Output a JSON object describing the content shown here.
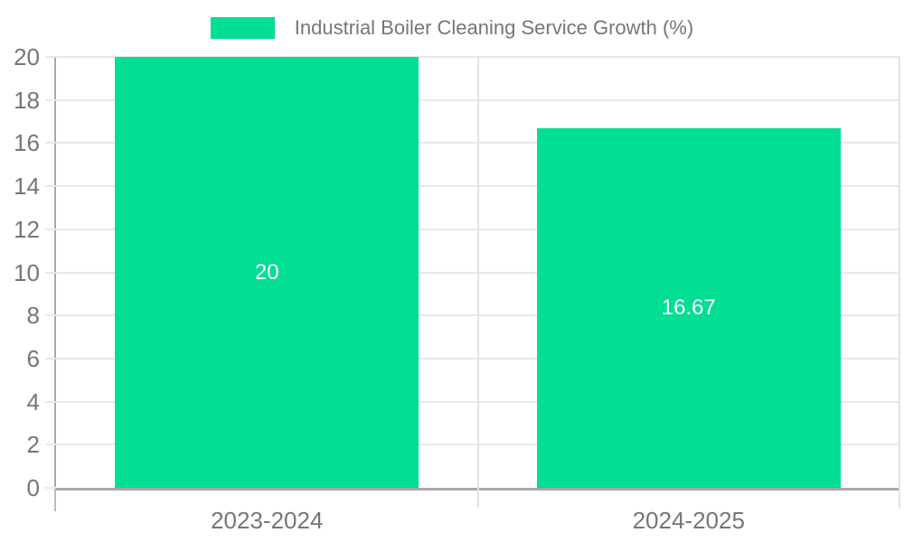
{
  "chart_data": {
    "type": "bar",
    "title": "Industrial Boiler Cleaning Service Growth (%)",
    "categories": [
      "2023-2024",
      "2024-2025"
    ],
    "values": [
      20,
      16.67
    ],
    "value_labels": [
      "20",
      "16.67"
    ],
    "xlabel": "",
    "ylabel": "",
    "ylim": [
      0,
      20
    ],
    "ytick_step": 2,
    "ytick_labels": [
      "0",
      "2",
      "4",
      "6",
      "8",
      "10",
      "12",
      "14",
      "16",
      "18",
      "20"
    ],
    "grid": true,
    "legend_position": "top-center",
    "colors": {
      "bar": "#02DE93",
      "bar_value_text": "#ffffff",
      "axis_text": "#767676",
      "gridline": "#e8e8e8",
      "axis_line": "#a9a9a9",
      "background": "#ffffff"
    },
    "legend": {
      "swatch_color": "#02DE93",
      "label": "Industrial Boiler Cleaning Service Growth (%)"
    }
  }
}
